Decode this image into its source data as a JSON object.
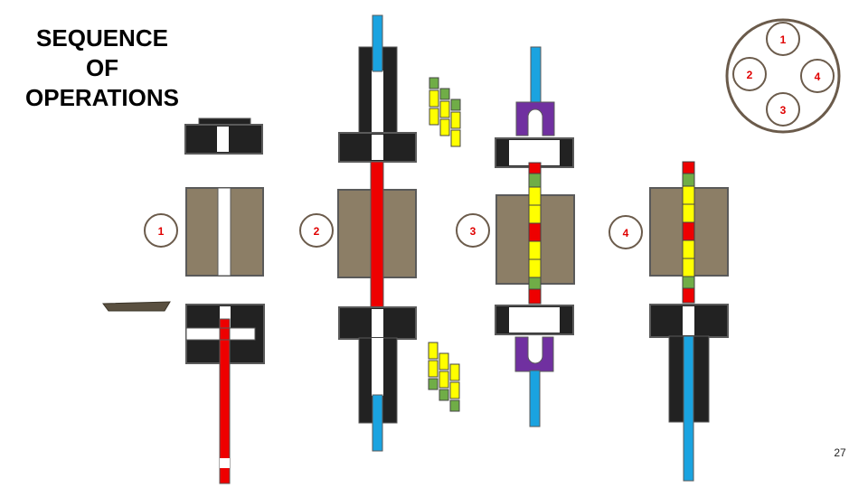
{
  "title": {
    "lines": [
      "SEQUENCE",
      "OF",
      "OPERATIONS"
    ]
  },
  "page_number": "27",
  "steps": [
    {
      "label": "1"
    },
    {
      "label": "2"
    },
    {
      "label": "3"
    },
    {
      "label": "4"
    }
  ],
  "station_dial": {
    "positions": [
      "1",
      "2",
      "4",
      "3"
    ]
  },
  "colors": {
    "die_black": "#222222",
    "die_outline": "#5a5a5a",
    "die_body": "#8c7e66",
    "blank_red": "#ee0000",
    "punch_blue": "#1aa3e0",
    "stripper_purple": "#7030a0",
    "pellet_yellow": "#ffff00",
    "pellet_green": "#70ad47",
    "label_red": "#e00000",
    "circle_border": "#6b5b4b",
    "tray_brown": "#5a5040"
  }
}
